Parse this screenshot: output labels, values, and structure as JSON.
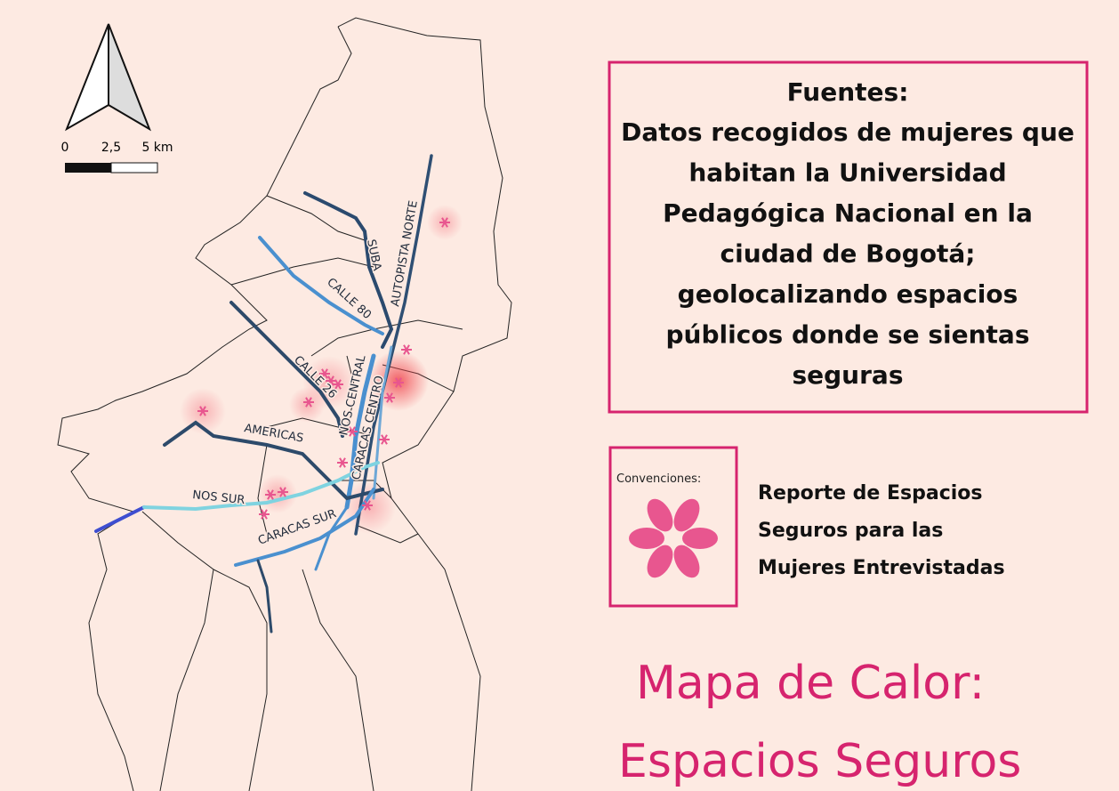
{
  "scale": {
    "labels": [
      "0",
      "2,5",
      "5 km"
    ]
  },
  "roads": [
    "SUBA",
    "AUTOPISTA NORTE",
    "CALLE 80",
    "CALLE 26",
    "NOS CENTRAL",
    "CARACAS CENTRO",
    "AMERICAS",
    "NOS SUR",
    "CARACAS SUR"
  ],
  "sources": {
    "heading": "Fuentes:",
    "lines": [
      "Datos recogidos de mujeres que",
      "habitan la Universidad",
      "Pedagógica Nacional en la",
      "ciudad de Bogotá;",
      "geolocalizando espacios",
      "públicos donde se sientas",
      "seguras"
    ]
  },
  "legend": {
    "title": "Convenciones:",
    "lines": [
      "Reporte de Espacios",
      "Seguros para las",
      "Mujeres Entrevistadas"
    ]
  },
  "title": {
    "lines": [
      "Mapa de Calor:",
      "Espacios Seguros"
    ]
  }
}
